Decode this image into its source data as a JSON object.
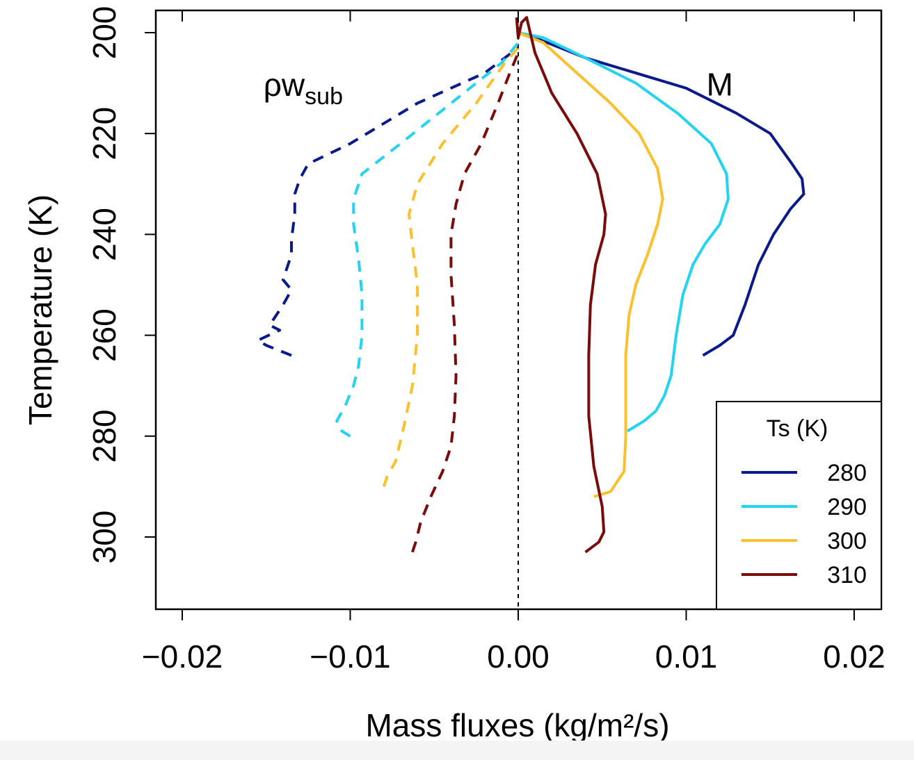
{
  "chart_data": {
    "type": "line",
    "title": "",
    "xlabel": "Mass fluxes  (kg/m²/s)",
    "ylabel": "Temperature (K)",
    "xlim": [
      -0.022,
      0.022
    ],
    "ylim": [
      314,
      196
    ],
    "x_ticks": [
      -0.02,
      -0.01,
      0.0,
      0.01,
      0.02
    ],
    "x_tick_labels": [
      "−0.02",
      "−0.01",
      "0.00",
      "0.01",
      "0.02"
    ],
    "y_ticks": [
      200,
      220,
      240,
      260,
      280,
      300
    ],
    "y_tick_labels": [
      "200",
      "220",
      "240",
      "260",
      "280",
      "300"
    ],
    "zero_line": {
      "x": 0,
      "style": "dashed"
    },
    "annotations": [
      {
        "id": "rho-w-sub",
        "base": "ρw",
        "sub": "sub",
        "at_x": -0.0128,
        "at_y": 212
      },
      {
        "id": "M",
        "text": "M",
        "at_x": 0.012,
        "at_y": 210
      }
    ],
    "legend": {
      "title": "Ts (K)",
      "position": "bottom-right",
      "entries": [
        "280",
        "290",
        "300",
        "310"
      ]
    },
    "series": [
      {
        "name": "280",
        "color": "#0a1a8c",
        "kind": "M",
        "style": "solid",
        "points": [
          [
            0.011,
            264
          ],
          [
            0.012,
            262
          ],
          [
            0.0128,
            260
          ],
          [
            0.0135,
            254
          ],
          [
            0.0143,
            246
          ],
          [
            0.0152,
            240
          ],
          [
            0.0162,
            235
          ],
          [
            0.017,
            232
          ],
          [
            0.0169,
            229
          ],
          [
            0.0163,
            226
          ],
          [
            0.015,
            220
          ],
          [
            0.013,
            216
          ],
          [
            0.01,
            211
          ],
          [
            0.007,
            208
          ],
          [
            0.004,
            205
          ],
          [
            0.001,
            201
          ],
          [
            0.0,
            200
          ]
        ]
      },
      {
        "name": "290",
        "color": "#22d3f2",
        "kind": "M",
        "style": "solid",
        "points": [
          [
            0.0065,
            279
          ],
          [
            0.0075,
            277
          ],
          [
            0.0082,
            275
          ],
          [
            0.0087,
            272
          ],
          [
            0.0091,
            268
          ],
          [
            0.0094,
            260
          ],
          [
            0.0098,
            252
          ],
          [
            0.0104,
            246
          ],
          [
            0.0111,
            242
          ],
          [
            0.012,
            238
          ],
          [
            0.0125,
            233
          ],
          [
            0.0124,
            228
          ],
          [
            0.0115,
            222
          ],
          [
            0.0095,
            216
          ],
          [
            0.007,
            210
          ],
          [
            0.004,
            205
          ],
          [
            0.0015,
            201
          ],
          [
            0.0,
            200
          ]
        ]
      },
      {
        "name": "300",
        "color": "#fcc02d",
        "kind": "M",
        "style": "solid",
        "points": [
          [
            0.0045,
            292
          ],
          [
            0.0055,
            291
          ],
          [
            0.0063,
            287
          ],
          [
            0.0064,
            280
          ],
          [
            0.0064,
            272
          ],
          [
            0.0064,
            264
          ],
          [
            0.0066,
            256
          ],
          [
            0.007,
            250
          ],
          [
            0.0077,
            244
          ],
          [
            0.0083,
            238
          ],
          [
            0.0086,
            233
          ],
          [
            0.0083,
            227
          ],
          [
            0.0072,
            220
          ],
          [
            0.0055,
            214
          ],
          [
            0.0035,
            208
          ],
          [
            0.0015,
            202
          ],
          [
            0.0,
            200
          ]
        ]
      },
      {
        "name": "310",
        "color": "#7b0a0a",
        "kind": "M",
        "style": "solid",
        "points": [
          [
            0.004,
            303
          ],
          [
            0.0048,
            301
          ],
          [
            0.0051,
            299
          ],
          [
            0.005,
            294
          ],
          [
            0.0045,
            286
          ],
          [
            0.0042,
            276
          ],
          [
            0.0042,
            264
          ],
          [
            0.0043,
            254
          ],
          [
            0.0046,
            246
          ],
          [
            0.0051,
            240
          ],
          [
            0.0052,
            236
          ],
          [
            0.0047,
            228
          ],
          [
            0.0035,
            220
          ],
          [
            0.002,
            212
          ],
          [
            0.001,
            204
          ],
          [
            0.0005,
            197
          ],
          [
            0.0002,
            198
          ],
          [
            0.0,
            201
          ],
          [
            -0.0001,
            197
          ]
        ]
      },
      {
        "name": "280",
        "color": "#0a1a8c",
        "kind": "rho_w_sub",
        "style": "dashed",
        "points": [
          [
            -0.0135,
            264
          ],
          [
            -0.015,
            262
          ],
          [
            -0.0155,
            261
          ],
          [
            -0.0142,
            259
          ],
          [
            -0.0148,
            258
          ],
          [
            -0.014,
            254
          ],
          [
            -0.0135,
            251
          ],
          [
            -0.014,
            249
          ],
          [
            -0.0135,
            244
          ],
          [
            -0.0135,
            241
          ],
          [
            -0.0133,
            236
          ],
          [
            -0.0133,
            232
          ],
          [
            -0.013,
            229
          ],
          [
            -0.0125,
            226
          ],
          [
            -0.01,
            222
          ],
          [
            -0.006,
            214
          ],
          [
            -0.002,
            208
          ],
          [
            0.0,
            203
          ]
        ]
      },
      {
        "name": "290",
        "color": "#22d3f2",
        "kind": "rho_w_sub",
        "style": "dashed",
        "points": [
          [
            -0.01,
            280
          ],
          [
            -0.0105,
            279
          ],
          [
            -0.0108,
            277
          ],
          [
            -0.0103,
            274
          ],
          [
            -0.0098,
            270
          ],
          [
            -0.0095,
            266
          ],
          [
            -0.0093,
            260
          ],
          [
            -0.0093,
            252
          ],
          [
            -0.0095,
            245
          ],
          [
            -0.0098,
            238
          ],
          [
            -0.0098,
            233
          ],
          [
            -0.0093,
            228
          ],
          [
            -0.007,
            222
          ],
          [
            -0.004,
            214
          ],
          [
            -0.001,
            206
          ],
          [
            0.0,
            202
          ]
        ]
      },
      {
        "name": "300",
        "color": "#fcc02d",
        "kind": "rho_w_sub",
        "style": "dashed",
        "points": [
          [
            -0.008,
            290
          ],
          [
            -0.0078,
            288
          ],
          [
            -0.0073,
            285
          ],
          [
            -0.0068,
            278
          ],
          [
            -0.0063,
            270
          ],
          [
            -0.006,
            260
          ],
          [
            -0.006,
            250
          ],
          [
            -0.0063,
            242
          ],
          [
            -0.0065,
            236
          ],
          [
            -0.006,
            230
          ],
          [
            -0.0045,
            222
          ],
          [
            -0.0025,
            214
          ],
          [
            -0.0008,
            206
          ],
          [
            0.0,
            203
          ]
        ]
      },
      {
        "name": "310",
        "color": "#7b0a0a",
        "kind": "rho_w_sub",
        "style": "dashed",
        "points": [
          [
            -0.0063,
            303
          ],
          [
            -0.0061,
            301
          ],
          [
            -0.0058,
            297
          ],
          [
            -0.0052,
            292
          ],
          [
            -0.0045,
            287
          ],
          [
            -0.004,
            282
          ],
          [
            -0.0038,
            276
          ],
          [
            -0.0037,
            268
          ],
          [
            -0.0038,
            258
          ],
          [
            -0.004,
            248
          ],
          [
            -0.004,
            240
          ],
          [
            -0.0037,
            234
          ],
          [
            -0.0032,
            228
          ],
          [
            -0.0022,
            222
          ],
          [
            -0.0012,
            214
          ],
          [
            -0.0005,
            208
          ],
          [
            0.0,
            204
          ]
        ]
      }
    ]
  }
}
